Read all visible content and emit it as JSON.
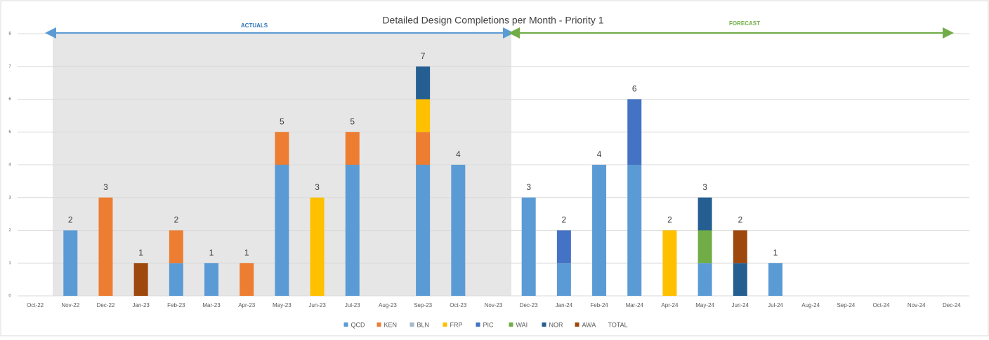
{
  "chart_data": {
    "type": "stacked_bar",
    "title": "Detailed Design Completions per Month - Priority 1",
    "annotations": {
      "actuals": "ACTUALS",
      "forecast": "FORECAST"
    },
    "categories": [
      "Oct-22",
      "Nov-22",
      "Dec-22",
      "Jan-23",
      "Feb-23",
      "Mar-23",
      "Apr-23",
      "May-23",
      "Jun-23",
      "Jul-23",
      "Aug-23",
      "Sep-23",
      "Oct-23",
      "Nov-23",
      "Dec-23",
      "Jan-24",
      "Feb-24",
      "Mar-24",
      "Apr-24",
      "May-24",
      "Jun-24",
      "Jul-24",
      "Aug-24",
      "Sep-24",
      "Oct-24",
      "Nov-24",
      "Dec-24"
    ],
    "series": [
      {
        "name": "QCD",
        "color": "#5b9bd5",
        "values": [
          null,
          2,
          null,
          null,
          1,
          1,
          null,
          4,
          null,
          4,
          null,
          4,
          4,
          null,
          3,
          1,
          4,
          4,
          null,
          1,
          null,
          1,
          null,
          null,
          null,
          null,
          null
        ]
      },
      {
        "name": "KEN",
        "color": "#ed7d31",
        "values": [
          null,
          null,
          3,
          null,
          1,
          null,
          1,
          1,
          null,
          1,
          null,
          1,
          null,
          null,
          null,
          null,
          null,
          null,
          null,
          null,
          null,
          null,
          null,
          null,
          null,
          null,
          null
        ]
      },
      {
        "name": "BLN",
        "color": "#a5b8cc",
        "values": [
          null,
          null,
          null,
          null,
          null,
          null,
          null,
          null,
          null,
          null,
          null,
          null,
          null,
          null,
          null,
          null,
          null,
          null,
          null,
          null,
          null,
          null,
          null,
          null,
          null,
          null,
          null
        ]
      },
      {
        "name": "FRP",
        "color": "#ffc000",
        "values": [
          null,
          null,
          null,
          null,
          null,
          null,
          null,
          null,
          3,
          null,
          null,
          1,
          null,
          null,
          null,
          null,
          null,
          null,
          2,
          null,
          null,
          null,
          null,
          null,
          null,
          null,
          null
        ]
      },
      {
        "name": "PIC",
        "color": "#4472c4",
        "values": [
          null,
          null,
          null,
          null,
          null,
          null,
          null,
          null,
          null,
          null,
          null,
          null,
          null,
          null,
          null,
          1,
          null,
          2,
          null,
          null,
          null,
          null,
          null,
          null,
          null,
          null,
          null
        ]
      },
      {
        "name": "WAI",
        "color": "#70ad47",
        "values": [
          null,
          null,
          null,
          null,
          null,
          null,
          null,
          null,
          null,
          null,
          null,
          null,
          null,
          null,
          null,
          null,
          null,
          null,
          null,
          1,
          null,
          null,
          null,
          null,
          null,
          null,
          null
        ]
      },
      {
        "name": "NOR",
        "color": "#255e91",
        "values": [
          null,
          null,
          null,
          null,
          null,
          null,
          null,
          null,
          null,
          null,
          null,
          1,
          null,
          null,
          null,
          null,
          null,
          null,
          null,
          1,
          1,
          null,
          null,
          null,
          null,
          null,
          null
        ]
      },
      {
        "name": "AWA",
        "color": "#9e480e",
        "values": [
          null,
          null,
          null,
          1,
          null,
          null,
          null,
          null,
          null,
          null,
          null,
          null,
          null,
          null,
          null,
          null,
          null,
          null,
          null,
          null,
          1,
          null,
          null,
          null,
          null,
          null,
          null
        ]
      },
      {
        "name": "TOTAL",
        "values": [
          null,
          2,
          3,
          1,
          2,
          1,
          1,
          5,
          3,
          5,
          null,
          7,
          4,
          null,
          3,
          2,
          4,
          6,
          2,
          3,
          2,
          1,
          null,
          null,
          null,
          null,
          null
        ]
      }
    ],
    "ylim": [
      0,
      8
    ],
    "yticks": [
      0,
      1,
      2,
      3,
      4,
      5,
      6,
      7,
      8
    ],
    "grid": true
  }
}
